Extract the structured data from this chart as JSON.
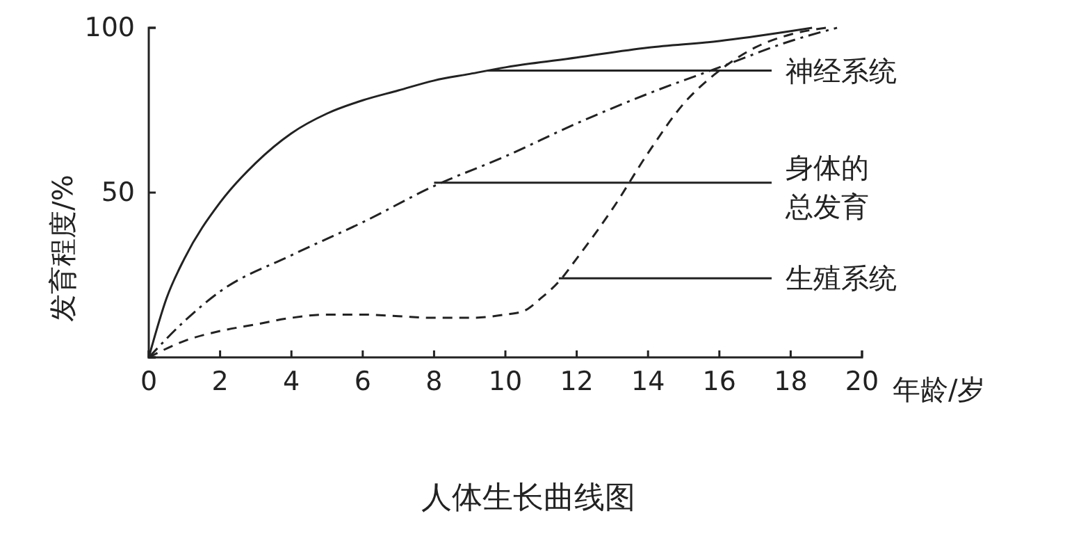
{
  "chart_data": {
    "type": "line",
    "title": "人体生长曲线图",
    "xlabel": "年龄/岁",
    "ylabel": "发育程度/%",
    "xlim": [
      0,
      20
    ],
    "ylim": [
      0,
      100
    ],
    "xticks": [
      0,
      2,
      4,
      6,
      8,
      10,
      12,
      14,
      16,
      18,
      20
    ],
    "yticks": [
      {
        "value": 0,
        "label": null
      },
      50,
      100
    ],
    "grid": false,
    "marker": "none",
    "series": [
      {
        "color": "#222222",
        "line_style": "solid",
        "x": [
          0,
          0.5,
          1,
          2,
          3,
          4,
          5,
          6,
          7,
          8,
          9,
          10,
          12,
          14,
          16,
          18,
          18.6
        ],
        "values": [
          0,
          18,
          30,
          47,
          59,
          68,
          74,
          78,
          81,
          84,
          86,
          88,
          91,
          94,
          96,
          99,
          100
        ]
      },
      {
        "color": "#222222",
        "line_style": "dashdot",
        "x": [
          0,
          1,
          2,
          4,
          6,
          8,
          10,
          12,
          14,
          16,
          18,
          19.3
        ],
        "values": [
          0,
          11,
          20,
          31,
          41,
          52,
          61,
          71,
          80,
          88,
          96,
          100
        ]
      },
      {
        "color": "#222222",
        "line_style": "dashed",
        "x": [
          0,
          1,
          2,
          3,
          4,
          5,
          6,
          7,
          8,
          9,
          10,
          10.5,
          11,
          11.5,
          12,
          13,
          14,
          15,
          16,
          17,
          18,
          19
        ],
        "values": [
          0,
          5,
          8,
          10,
          12,
          13,
          13,
          12.5,
          12,
          12,
          13,
          14,
          18,
          23,
          30,
          45,
          62,
          77,
          87,
          94,
          98,
          100
        ]
      }
    ],
    "annotations": [
      {
        "text": "神经系统",
        "x": 9.5,
        "y": 87
      },
      {
        "text": "身体的总发育",
        "x": 8,
        "y": 53
      },
      {
        "text": "生殖系统",
        "x": 11.5,
        "y": 24
      }
    ]
  }
}
